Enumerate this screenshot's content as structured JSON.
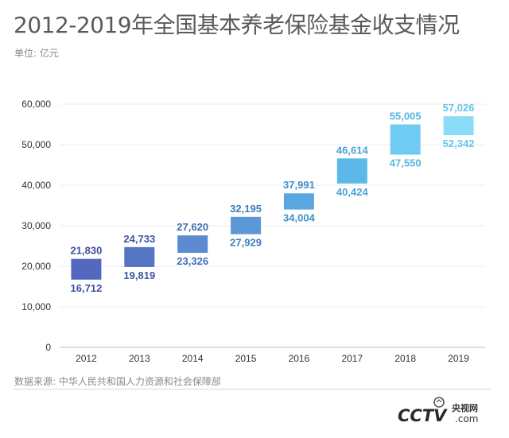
{
  "title": "2012-2019年全国基本养老保险基金收支情况",
  "unit": "单位: 亿元",
  "source": "数据来源: 中华人民共和国人力资源和社会保障部",
  "logo": {
    "text": "CCTV",
    "suffix": ".com",
    "cn": "央视网",
    "icon": "cctv-logo"
  },
  "colors": {
    "bars": [
      "#5568c0",
      "#5574c4",
      "#5b8ad0",
      "#5c97d8",
      "#5aa6e0",
      "#5cb8e8",
      "#70cbf2",
      "#8adcf8"
    ],
    "labels": [
      "#3d4f9c",
      "#3d58a4",
      "#3e6eb2",
      "#3d7dbd",
      "#3d8fc8",
      "#4aa3d5",
      "#56b6e1",
      "#62c6ec"
    ]
  },
  "chart_data": {
    "type": "floating-bar",
    "title": "2012-2019年全国基本养老保险基金收支情况",
    "xlabel": "",
    "ylabel": "",
    "unit": "亿元",
    "categories": [
      "2012",
      "2013",
      "2014",
      "2015",
      "2016",
      "2017",
      "2018",
      "2019"
    ],
    "series": [
      {
        "values_high": [
          21830,
          24733,
          27620,
          32195,
          37991,
          46614,
          55005,
          57026
        ]
      },
      {
        "values_low": [
          16712,
          19819,
          23326,
          27929,
          34004,
          40424,
          47550,
          52342
        ]
      }
    ],
    "high": [
      21830,
      24733,
      27620,
      32195,
      37991,
      46614,
      55005,
      57026
    ],
    "low": [
      16712,
      19819,
      23326,
      27929,
      34004,
      40424,
      47550,
      52342
    ],
    "high_labels": [
      "21,830",
      "24,733",
      "27,620",
      "32,195",
      "37,991",
      "46,614",
      "55,005",
      "57,026"
    ],
    "low_labels": [
      "16,712",
      "19,819",
      "23,326",
      "27,929",
      "34,004",
      "40,424",
      "47,550",
      "52,342"
    ],
    "yticks": [
      0,
      10000,
      20000,
      30000,
      40000,
      50000,
      60000
    ],
    "ytick_labels": [
      "0",
      "10,000",
      "20,000",
      "30,000",
      "40,000",
      "50,000",
      "60,000"
    ],
    "ylim": [
      0,
      60000
    ],
    "grid": true,
    "legend": "none"
  }
}
